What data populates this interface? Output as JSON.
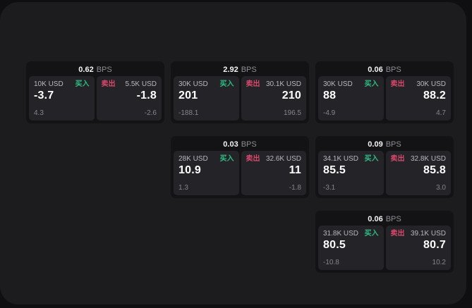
{
  "colors": {
    "buy_green": "#2ebd85",
    "sell_red": "#d9486b"
  },
  "labels": {
    "bps_unit": "BPS",
    "buy": "买入",
    "sell": "卖出"
  },
  "cards": [
    {
      "bps": "0.62",
      "buy": {
        "size": "10K USD",
        "value": "-3.7",
        "sub": "4.3"
      },
      "sell": {
        "size": "5.5K USD",
        "value": "-1.8",
        "sub": "-2.6"
      }
    },
    {
      "bps": "2.92",
      "buy": {
        "size": "30K USD",
        "value": "201",
        "sub": "-188.1"
      },
      "sell": {
        "size": "30.1K USD",
        "value": "210",
        "sub": "196.5"
      }
    },
    {
      "bps": "0.06",
      "buy": {
        "size": "30K USD",
        "value": "88",
        "sub": "-4.9"
      },
      "sell": {
        "size": "30K USD",
        "value": "88.2",
        "sub": "4.7"
      }
    },
    {
      "bps": "0.03",
      "buy": {
        "size": "28K USD",
        "value": "10.9",
        "sub": "1.3"
      },
      "sell": {
        "size": "32.6K USD",
        "value": "11",
        "sub": "-1.8"
      }
    },
    {
      "bps": "0.09",
      "buy": {
        "size": "34.1K USD",
        "value": "85.5",
        "sub": "-3.1"
      },
      "sell": {
        "size": "32.8K USD",
        "value": "85.8",
        "sub": "3.0"
      }
    },
    {
      "bps": "0.06",
      "buy": {
        "size": "31.8K USD",
        "value": "80.5",
        "sub": "-10.8"
      },
      "sell": {
        "size": "39.1K USD",
        "value": "80.7",
        "sub": "10.2"
      }
    }
  ]
}
